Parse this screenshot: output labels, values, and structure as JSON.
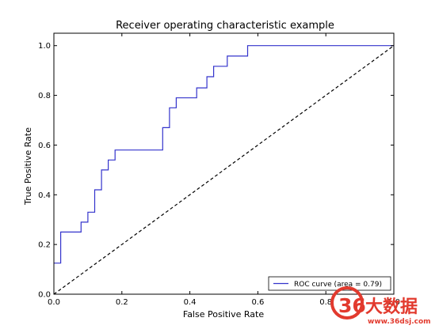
{
  "chart_data": {
    "type": "line",
    "title": "Receiver operating characteristic example",
    "xlabel": "False Positive Rate",
    "ylabel": "True Positive Rate",
    "xlim": [
      0.0,
      1.0
    ],
    "ylim": [
      0.0,
      1.05
    ],
    "x_ticks": [
      0.0,
      0.2,
      0.4,
      0.6,
      0.8,
      1.0
    ],
    "y_ticks": [
      0.0,
      0.2,
      0.4,
      0.6,
      0.8,
      1.0
    ],
    "x_tick_labels": [
      "0.0",
      "0.2",
      "0.4",
      "0.6",
      "0.8",
      "1.0"
    ],
    "y_tick_labels": [
      "0.0",
      "0.2",
      "0.4",
      "0.6",
      "0.8",
      "1.0"
    ],
    "grid": false,
    "legend_position": "lower-right",
    "series": [
      {
        "name": "ROC curve (area = 0.79)",
        "color": "#3333cc",
        "style": "solid",
        "x": [
          0.0,
          0.02,
          0.02,
          0.08,
          0.08,
          0.1,
          0.1,
          0.12,
          0.12,
          0.14,
          0.14,
          0.16,
          0.16,
          0.18,
          0.18,
          0.32,
          0.32,
          0.34,
          0.34,
          0.36,
          0.36,
          0.42,
          0.42,
          0.45,
          0.45,
          0.47,
          0.47,
          0.51,
          0.51,
          0.57,
          0.57,
          1.0
        ],
        "y": [
          0.125,
          0.125,
          0.25,
          0.25,
          0.29,
          0.29,
          0.33,
          0.33,
          0.42,
          0.42,
          0.5,
          0.5,
          0.54,
          0.54,
          0.58,
          0.58,
          0.67,
          0.67,
          0.75,
          0.75,
          0.79,
          0.79,
          0.83,
          0.83,
          0.875,
          0.875,
          0.917,
          0.917,
          0.958,
          0.958,
          1.0,
          1.0
        ]
      },
      {
        "color": "#000000",
        "style": "dashed",
        "x": [
          0.0,
          1.0
        ],
        "y": [
          0.0,
          1.0
        ]
      }
    ]
  },
  "watermark": {
    "logo_text": "36大数据",
    "url": "www.36dsj.com",
    "color": "#e23a2e"
  }
}
